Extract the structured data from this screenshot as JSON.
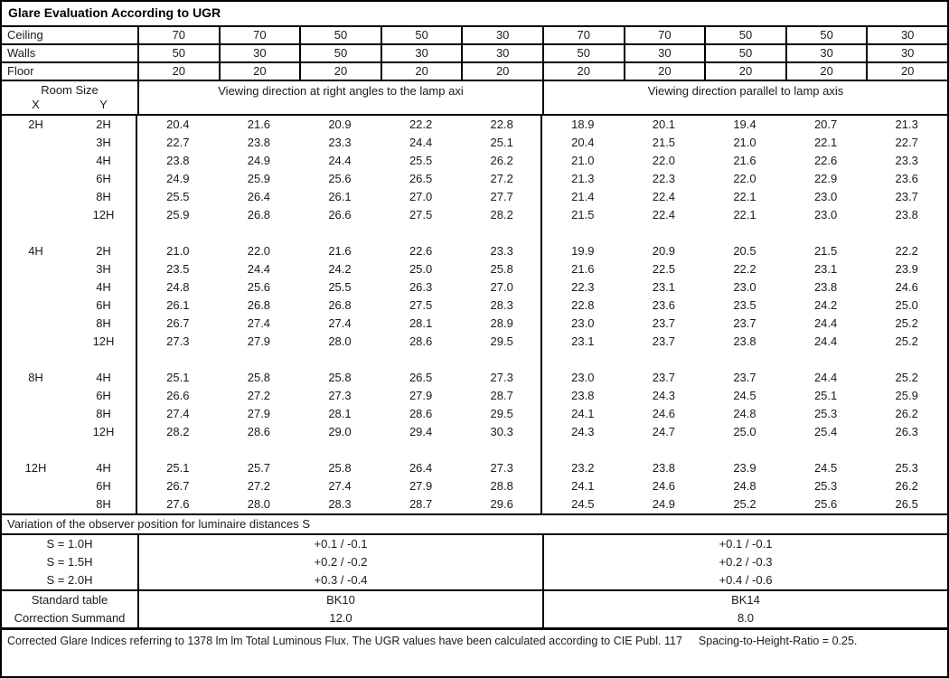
{
  "title": "Glare Evaluation According to UGR",
  "header_rows": [
    {
      "label": "Ceiling",
      "values": [
        "70",
        "70",
        "50",
        "50",
        "30",
        "70",
        "70",
        "50",
        "50",
        "30"
      ]
    },
    {
      "label": "Walls",
      "values": [
        "50",
        "30",
        "50",
        "30",
        "30",
        "50",
        "30",
        "50",
        "30",
        "30"
      ]
    },
    {
      "label": "Floor",
      "values": [
        "20",
        "20",
        "20",
        "20",
        "20",
        "20",
        "20",
        "20",
        "20",
        "20"
      ]
    }
  ],
  "room_size": {
    "label": "Room Size",
    "x": "X",
    "y": "Y"
  },
  "group_headers": [
    "Viewing direction at right angles to the lamp axi",
    "Viewing direction parallel to lamp axis"
  ],
  "blocks": [
    {
      "x": "2H",
      "rows": [
        {
          "y": "2H",
          "left": [
            "20.4",
            "21.6",
            "20.9",
            "22.2",
            "22.8"
          ],
          "right": [
            "18.9",
            "20.1",
            "19.4",
            "20.7",
            "21.3"
          ]
        },
        {
          "y": "3H",
          "left": [
            "22.7",
            "23.8",
            "23.3",
            "24.4",
            "25.1"
          ],
          "right": [
            "20.4",
            "21.5",
            "21.0",
            "22.1",
            "22.7"
          ]
        },
        {
          "y": "4H",
          "left": [
            "23.8",
            "24.9",
            "24.4",
            "25.5",
            "26.2"
          ],
          "right": [
            "21.0",
            "22.0",
            "21.6",
            "22.6",
            "23.3"
          ]
        },
        {
          "y": "6H",
          "left": [
            "24.9",
            "25.9",
            "25.6",
            "26.5",
            "27.2"
          ],
          "right": [
            "21.3",
            "22.3",
            "22.0",
            "22.9",
            "23.6"
          ]
        },
        {
          "y": "8H",
          "left": [
            "25.5",
            "26.4",
            "26.1",
            "27.0",
            "27.7"
          ],
          "right": [
            "21.4",
            "22.4",
            "22.1",
            "23.0",
            "23.7"
          ]
        },
        {
          "y": "12H",
          "left": [
            "25.9",
            "26.8",
            "26.6",
            "27.5",
            "28.2"
          ],
          "right": [
            "21.5",
            "22.4",
            "22.1",
            "23.0",
            "23.8"
          ]
        }
      ]
    },
    {
      "x": "4H",
      "rows": [
        {
          "y": "2H",
          "left": [
            "21.0",
            "22.0",
            "21.6",
            "22.6",
            "23.3"
          ],
          "right": [
            "19.9",
            "20.9",
            "20.5",
            "21.5",
            "22.2"
          ]
        },
        {
          "y": "3H",
          "left": [
            "23.5",
            "24.4",
            "24.2",
            "25.0",
            "25.8"
          ],
          "right": [
            "21.6",
            "22.5",
            "22.2",
            "23.1",
            "23.9"
          ]
        },
        {
          "y": "4H",
          "left": [
            "24.8",
            "25.6",
            "25.5",
            "26.3",
            "27.0"
          ],
          "right": [
            "22.3",
            "23.1",
            "23.0",
            "23.8",
            "24.6"
          ]
        },
        {
          "y": "6H",
          "left": [
            "26.1",
            "26.8",
            "26.8",
            "27.5",
            "28.3"
          ],
          "right": [
            "22.8",
            "23.6",
            "23.5",
            "24.2",
            "25.0"
          ]
        },
        {
          "y": "8H",
          "left": [
            "26.7",
            "27.4",
            "27.4",
            "28.1",
            "28.9"
          ],
          "right": [
            "23.0",
            "23.7",
            "23.7",
            "24.4",
            "25.2"
          ]
        },
        {
          "y": "12H",
          "left": [
            "27.3",
            "27.9",
            "28.0",
            "28.6",
            "29.5"
          ],
          "right": [
            "23.1",
            "23.7",
            "23.8",
            "24.4",
            "25.2"
          ]
        }
      ]
    },
    {
      "x": "8H",
      "rows": [
        {
          "y": "4H",
          "left": [
            "25.1",
            "25.8",
            "25.8",
            "26.5",
            "27.3"
          ],
          "right": [
            "23.0",
            "23.7",
            "23.7",
            "24.4",
            "25.2"
          ]
        },
        {
          "y": "6H",
          "left": [
            "26.6",
            "27.2",
            "27.3",
            "27.9",
            "28.7"
          ],
          "right": [
            "23.8",
            "24.3",
            "24.5",
            "25.1",
            "25.9"
          ]
        },
        {
          "y": "8H",
          "left": [
            "27.4",
            "27.9",
            "28.1",
            "28.6",
            "29.5"
          ],
          "right": [
            "24.1",
            "24.6",
            "24.8",
            "25.3",
            "26.2"
          ]
        },
        {
          "y": "12H",
          "left": [
            "28.2",
            "28.6",
            "29.0",
            "29.4",
            "30.3"
          ],
          "right": [
            "24.3",
            "24.7",
            "25.0",
            "25.4",
            "26.3"
          ]
        }
      ]
    },
    {
      "x": "12H",
      "rows": [
        {
          "y": "4H",
          "left": [
            "25.1",
            "25.7",
            "25.8",
            "26.4",
            "27.3"
          ],
          "right": [
            "23.2",
            "23.8",
            "23.9",
            "24.5",
            "25.3"
          ]
        },
        {
          "y": "6H",
          "left": [
            "26.7",
            "27.2",
            "27.4",
            "27.9",
            "28.8"
          ],
          "right": [
            "24.1",
            "24.6",
            "24.8",
            "25.3",
            "26.2"
          ]
        },
        {
          "y": "8H",
          "left": [
            "27.6",
            "28.0",
            "28.3",
            "28.7",
            "29.6"
          ],
          "right": [
            "24.5",
            "24.9",
            "25.2",
            "25.6",
            "26.5"
          ]
        }
      ]
    }
  ],
  "variation": {
    "header": "Variation of the observer position for luminaire distances S",
    "rows": [
      {
        "label": "S = 1.0H",
        "left": "+0.1 / -0.1",
        "right": "+0.1 / -0.1"
      },
      {
        "label": "S = 1.5H",
        "left": "+0.2 / -0.2",
        "right": "+0.2 / -0.3"
      },
      {
        "label": "S = 2.0H",
        "left": "+0.3 / -0.4",
        "right": "+0.4 / -0.6"
      }
    ]
  },
  "summary": {
    "rows": [
      {
        "label": "Standard table",
        "left": "BK10",
        "right": "BK14"
      },
      {
        "label": "Correction Summand",
        "left": "12.0",
        "right": "8.0"
      }
    ]
  },
  "footer": {
    "text": "Corrected Glare Indices referring to 1378 lm lm Total Luminous Flux. The UGR values have been calculated according to CIE Publ. 117",
    "ratio": "Spacing-to-Height-Ratio = 0.25."
  }
}
